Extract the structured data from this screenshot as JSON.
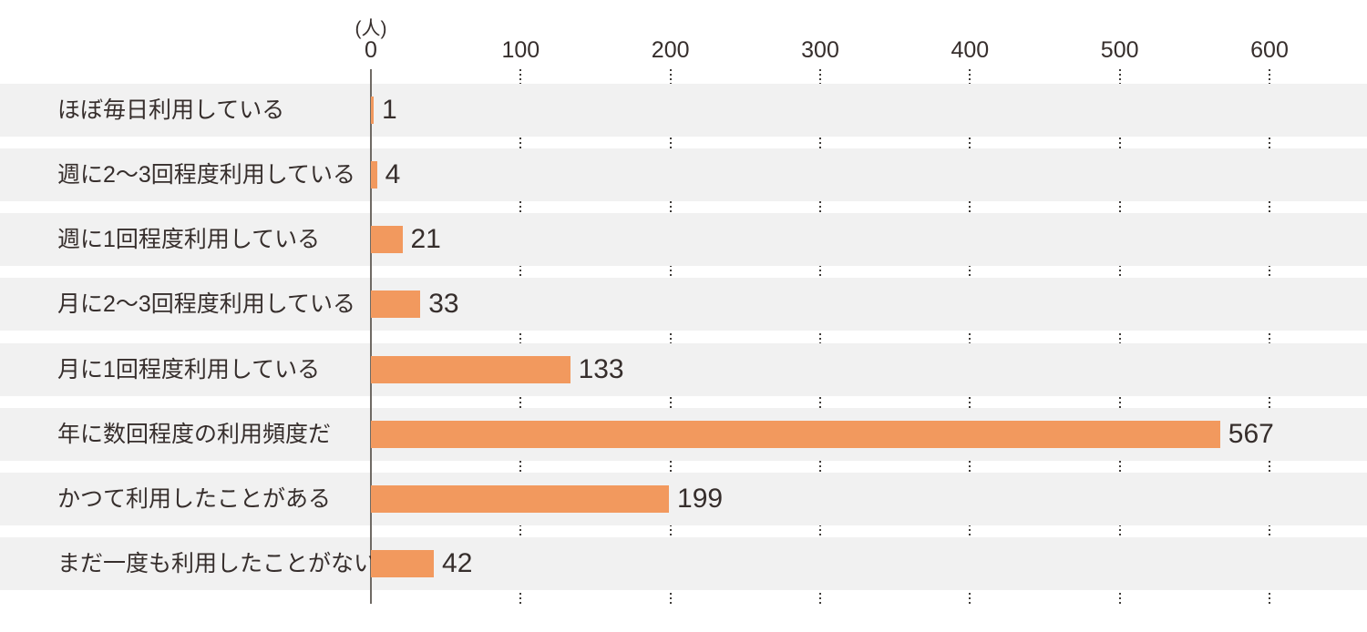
{
  "chart_data": {
    "type": "bar",
    "orientation": "horizontal",
    "title": "",
    "xlabel": "",
    "ylabel": "",
    "unit_label": "(人)",
    "categories": [
      "ほぼ毎日利用している",
      "週に2〜3回程度利用している",
      "週に1回程度利用している",
      "月に2〜3回程度利用している",
      "月に1回程度利用している",
      "年に数回程度の利用頻度だ",
      "かつて利用したことがある",
      "まだ一度も利用したことがない"
    ],
    "values": [
      1,
      4,
      21,
      33,
      133,
      567,
      199,
      42
    ],
    "x_ticks": [
      0,
      100,
      200,
      300,
      400,
      500,
      600
    ],
    "xlim": [
      0,
      600
    ],
    "legend": "none",
    "grid": "vertical-dotted-between-bands",
    "colors": {
      "bar": "#F2995E",
      "row_band": "#F1F1F1",
      "text": "#362E2C",
      "axis_line": "#6F6A64",
      "grid_dots": "#3F3C39",
      "background": "#FFFFFF"
    }
  }
}
